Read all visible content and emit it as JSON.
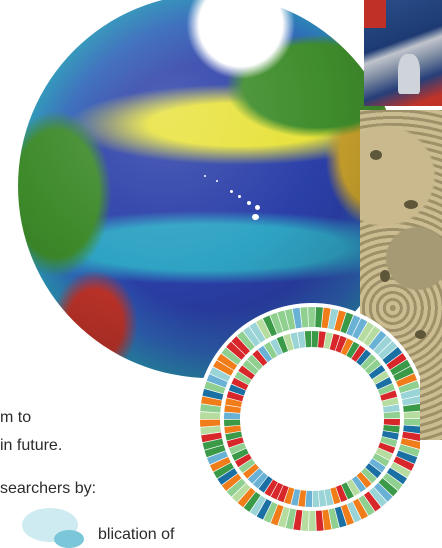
{
  "text": {
    "line1": "m to",
    "line2": "in future.",
    "line3": "searchers by:",
    "line4": "blication of"
  },
  "colors": {
    "ring_palette": [
      "#d7272a",
      "#f07d1a",
      "#3a9a47",
      "#8fcf8f",
      "#1a6fa3",
      "#9ad4d6",
      "#6ab1d6",
      "#b7dca0"
    ]
  }
}
